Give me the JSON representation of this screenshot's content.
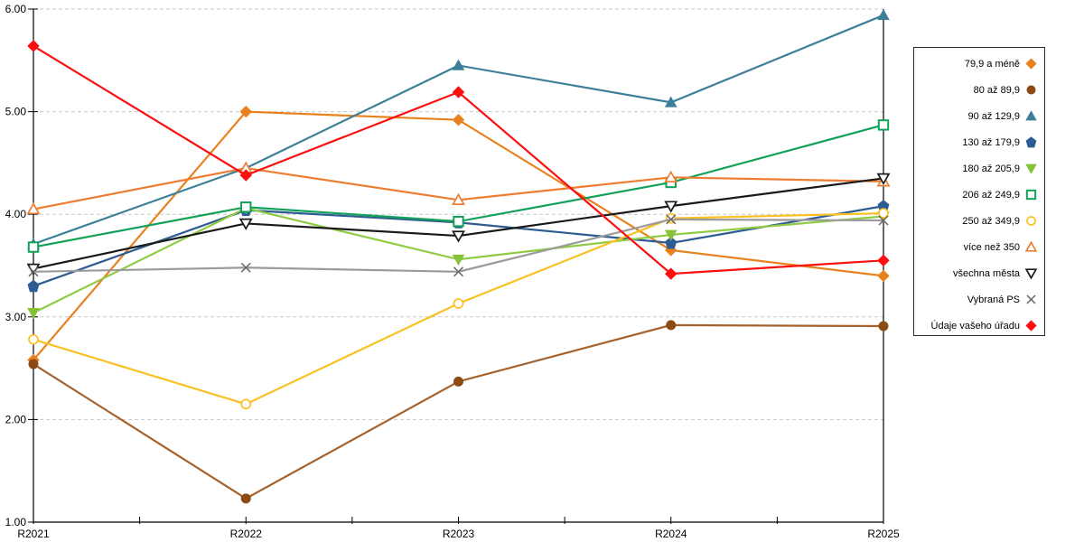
{
  "page": {
    "background": "#ffffff"
  },
  "chart_data": {
    "type": "line",
    "title": "",
    "xlabel": "",
    "ylabel": "",
    "categories": [
      "R2021",
      "R2022",
      "R2023",
      "R2024",
      "R2025"
    ],
    "ylim": [
      1,
      6
    ],
    "ytick_labels": [
      "1.00",
      "2.00",
      "3.00",
      "4.00",
      "5.00",
      "6.00"
    ],
    "grid": "horizontal-dashed",
    "grid_color": "#c8c8c8",
    "axis_color": "#000000",
    "legend_position": "right",
    "series": [
      {
        "name": "79,9 a méně",
        "marker": "diamond",
        "fill": "filled",
        "color": "#E8821E",
        "values": [
          2.58,
          5.0,
          4.92,
          3.65,
          3.4
        ]
      },
      {
        "name": "80 až 89,9",
        "marker": "circle",
        "fill": "filled",
        "color": "#A5622D",
        "marker_color": "#8C4A15",
        "values": [
          2.54,
          1.23,
          2.37,
          2.92,
          2.91
        ]
      },
      {
        "name": "90 až 129,9",
        "marker": "triangle-up",
        "fill": "filled",
        "color": "#3D7F98",
        "values": [
          3.71,
          4.45,
          5.45,
          5.09,
          5.94
        ]
      },
      {
        "name": "130 až 179,9",
        "marker": "pentagon",
        "fill": "filled",
        "color": "#2E5C92",
        "values": [
          3.3,
          4.04,
          3.92,
          3.72,
          4.08
        ]
      },
      {
        "name": "180 až 205,9",
        "marker": "triangle-down",
        "fill": "filled",
        "color": "#8FCB43",
        "marker_color": "#85C236",
        "values": [
          3.04,
          4.06,
          3.56,
          3.8,
          3.98
        ]
      },
      {
        "name": "206 až 249,9",
        "marker": "square",
        "fill": "open",
        "color": "#12A158",
        "values": [
          3.68,
          4.07,
          3.93,
          4.31,
          4.87
        ]
      },
      {
        "name": "250 až 349,9",
        "marker": "circle",
        "fill": "open",
        "color": "#FAC122",
        "values": [
          2.78,
          2.15,
          3.13,
          3.96,
          4.01
        ]
      },
      {
        "name": "více než 350",
        "marker": "triangle-up",
        "fill": "open",
        "color": "#ED7D31",
        "values": [
          4.05,
          4.45,
          4.14,
          4.36,
          4.32
        ]
      },
      {
        "name": "všechna města",
        "marker": "triangle-down",
        "fill": "open",
        "color": "#1A1A1A",
        "values": [
          3.47,
          3.91,
          3.79,
          4.08,
          4.35
        ]
      },
      {
        "name": "Vybraná PS",
        "marker": "x",
        "fill": "line",
        "color": "#9B9B9B",
        "marker_color": "#666666",
        "values": [
          3.44,
          3.48,
          3.44,
          3.95,
          3.94
        ]
      },
      {
        "name": "Údaje vašeho úřadu",
        "marker": "diamond",
        "fill": "filled",
        "color": "#FB0F0F",
        "values": [
          5.64,
          4.38,
          5.19,
          3.42,
          3.55
        ]
      }
    ]
  }
}
